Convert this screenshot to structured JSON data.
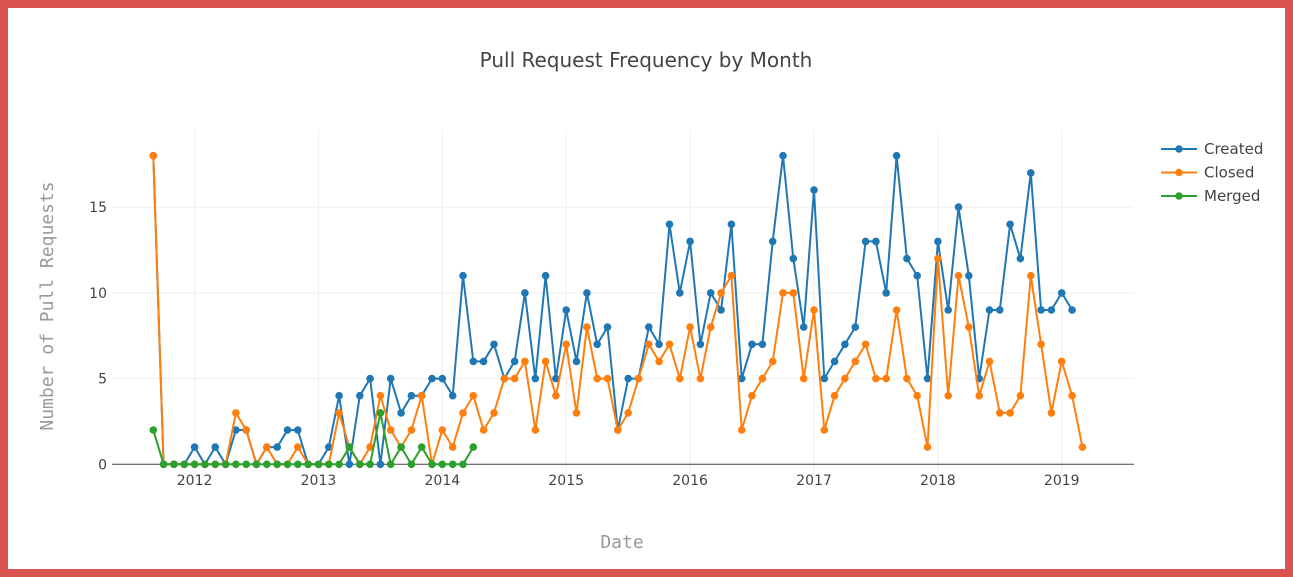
{
  "chart_data": {
    "type": "line",
    "title": "Pull Request Frequency by Month",
    "xlabel": "Date",
    "ylabel": "Number of Pull Requests",
    "x_ticks": [
      "2012",
      "2013",
      "2014",
      "2015",
      "2016",
      "2017",
      "2018",
      "2019"
    ],
    "y_ticks": [
      0,
      5,
      10,
      15
    ],
    "xlim": [
      "2011-05-01",
      "2019-08-01"
    ],
    "ylim": [
      -0.8,
      19.5
    ],
    "grid": true,
    "legend_position": "top-right",
    "series": [
      {
        "name": "Created",
        "color": "#1f77b4",
        "x": [
          "2011-09",
          "2011-10",
          "2011-11",
          "2011-12",
          "2012-01",
          "2012-02",
          "2012-03",
          "2012-04",
          "2012-05",
          "2012-06",
          "2012-07",
          "2012-08",
          "2012-09",
          "2012-10",
          "2012-11",
          "2012-12",
          "2013-01",
          "2013-02",
          "2013-03",
          "2013-04",
          "2013-05",
          "2013-06",
          "2013-07",
          "2013-08",
          "2013-09",
          "2013-10",
          "2013-11",
          "2013-12",
          "2014-01",
          "2014-02",
          "2014-03",
          "2014-04",
          "2014-05",
          "2014-06",
          "2014-07",
          "2014-08",
          "2014-09",
          "2014-10",
          "2014-11",
          "2014-12",
          "2015-01",
          "2015-02",
          "2015-03",
          "2015-04",
          "2015-05",
          "2015-06",
          "2015-07",
          "2015-08",
          "2015-09",
          "2015-10",
          "2015-11",
          "2015-12",
          "2016-01",
          "2016-02",
          "2016-03",
          "2016-04",
          "2016-05",
          "2016-06",
          "2016-07",
          "2016-08",
          "2016-09",
          "2016-10",
          "2016-11",
          "2016-12",
          "2017-01",
          "2017-02",
          "2017-03",
          "2017-04",
          "2017-05",
          "2017-06",
          "2017-07",
          "2017-08",
          "2017-09",
          "2017-10",
          "2017-11",
          "2017-12",
          "2018-01",
          "2018-02",
          "2018-03",
          "2018-04",
          "2018-05",
          "2018-06",
          "2018-07",
          "2018-08",
          "2018-09",
          "2018-10",
          "2018-11",
          "2018-12",
          "2019-01",
          "2019-02"
        ],
        "y": [
          18,
          0,
          0,
          0,
          1,
          0,
          1,
          0,
          2,
          2,
          0,
          1,
          1,
          2,
          2,
          0,
          0,
          1,
          4,
          0,
          4,
          5,
          0,
          5,
          3,
          4,
          4,
          5,
          5,
          4,
          11,
          6,
          6,
          7,
          5,
          6,
          10,
          5,
          11,
          5,
          9,
          6,
          10,
          7,
          8,
          2,
          5,
          5,
          8,
          7,
          14,
          10,
          13,
          7,
          10,
          9,
          14,
          5,
          7,
          7,
          13,
          18,
          12,
          8,
          16,
          5,
          6,
          7,
          8,
          13,
          13,
          10,
          18,
          12,
          11,
          5,
          13,
          9,
          15,
          11,
          5,
          9,
          9,
          14,
          12,
          17,
          9,
          9,
          10,
          9
        ]
      },
      {
        "name": "Closed",
        "color": "#ff7f0e",
        "x": [
          "2011-09",
          "2011-10",
          "2011-11",
          "2011-12",
          "2012-01",
          "2012-02",
          "2012-03",
          "2012-04",
          "2012-05",
          "2012-06",
          "2012-07",
          "2012-08",
          "2012-09",
          "2012-10",
          "2012-11",
          "2012-12",
          "2013-01",
          "2013-02",
          "2013-03",
          "2013-04",
          "2013-05",
          "2013-06",
          "2013-07",
          "2013-08",
          "2013-09",
          "2013-10",
          "2013-11",
          "2013-12",
          "2014-01",
          "2014-02",
          "2014-03",
          "2014-04",
          "2014-05",
          "2014-06",
          "2014-07",
          "2014-08",
          "2014-09",
          "2014-10",
          "2014-11",
          "2014-12",
          "2015-01",
          "2015-02",
          "2015-03",
          "2015-04",
          "2015-05",
          "2015-06",
          "2015-07",
          "2015-08",
          "2015-09",
          "2015-10",
          "2015-11",
          "2015-12",
          "2016-01",
          "2016-02",
          "2016-03",
          "2016-04",
          "2016-05",
          "2016-06",
          "2016-07",
          "2016-08",
          "2016-09",
          "2016-10",
          "2016-11",
          "2016-12",
          "2017-01",
          "2017-02",
          "2017-03",
          "2017-04",
          "2017-05",
          "2017-06",
          "2017-07",
          "2017-08",
          "2017-09",
          "2017-10",
          "2017-11",
          "2017-12",
          "2018-01",
          "2018-02",
          "2018-03",
          "2018-04",
          "2018-05",
          "2018-06",
          "2018-07",
          "2018-08",
          "2018-09",
          "2018-10",
          "2018-11",
          "2018-12",
          "2019-01",
          "2019-02",
          "2019-03"
        ],
        "y": [
          18,
          0,
          0,
          0,
          0,
          0,
          0,
          0,
          3,
          2,
          0,
          1,
          0,
          0,
          1,
          0,
          0,
          0,
          3,
          1,
          0,
          1,
          4,
          2,
          1,
          2,
          4,
          0,
          2,
          1,
          3,
          4,
          2,
          3,
          5,
          5,
          6,
          2,
          6,
          4,
          7,
          3,
          8,
          5,
          5,
          2,
          3,
          5,
          7,
          6,
          7,
          5,
          8,
          5,
          8,
          10,
          11,
          2,
          4,
          5,
          6,
          10,
          10,
          5,
          9,
          2,
          4,
          5,
          6,
          7,
          5,
          5,
          9,
          5,
          4,
          1,
          12,
          4,
          11,
          8,
          4,
          6,
          3,
          3,
          4,
          11,
          7,
          3,
          6,
          4,
          1
        ]
      },
      {
        "name": "Merged",
        "color": "#2ca02c",
        "x": [
          "2011-09",
          "2011-10",
          "2011-11",
          "2011-12",
          "2012-01",
          "2012-02",
          "2012-03",
          "2012-04",
          "2012-05",
          "2012-06",
          "2012-07",
          "2012-08",
          "2012-09",
          "2012-10",
          "2012-11",
          "2012-12",
          "2013-01",
          "2013-02",
          "2013-03",
          "2013-04",
          "2013-05",
          "2013-06",
          "2013-07",
          "2013-08",
          "2013-09",
          "2013-10",
          "2013-11",
          "2013-12",
          "2014-01",
          "2014-02",
          "2014-03",
          "2014-04"
        ],
        "y": [
          2,
          0,
          0,
          0,
          0,
          0,
          0,
          0,
          0,
          0,
          0,
          0,
          0,
          0,
          0,
          0,
          0,
          0,
          0,
          1,
          0,
          0,
          3,
          0,
          1,
          0,
          1,
          0,
          0,
          0,
          0,
          1
        ]
      }
    ]
  }
}
